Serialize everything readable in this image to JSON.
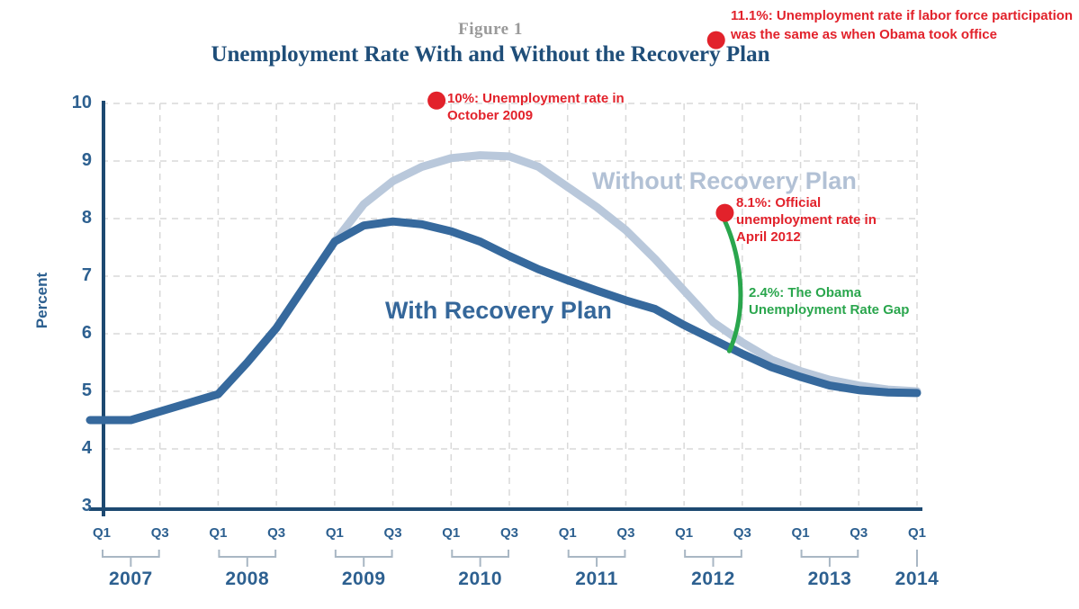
{
  "figure_label": "Figure 1",
  "title": "Unemployment Rate With and Without the Recovery Plan",
  "y_axis": {
    "label": "Percent",
    "ticks": [
      10,
      9,
      8,
      7,
      6,
      5,
      4,
      3
    ]
  },
  "x_axis": {
    "quarter_labels": [
      "Q1",
      "Q3"
    ],
    "years": [
      "2007",
      "2008",
      "2009",
      "2010",
      "2011",
      "2012",
      "2013",
      "2014"
    ]
  },
  "series_labels": {
    "with_plan": "With Recovery Plan",
    "without_plan": "Without Recovery Plan"
  },
  "annotations": {
    "participation": {
      "line1": "11.1%: Unemployment rate if labor force participation",
      "line2": "was the same as when Obama took office"
    },
    "oct2009": {
      "line1": "10%: Unemployment rate in",
      "line2": "October 2009"
    },
    "apr2012": {
      "line1": "8.1%: Official",
      "line2": "unemployment rate in",
      "line3": "April 2012"
    },
    "gap": {
      "line1": "2.4%: The Obama",
      "line2": "Unemployment Rate Gap"
    }
  },
  "colors": {
    "axis": "#1d4971",
    "tick_text": "#2d6090",
    "grid": "#d9d9d9",
    "with_line": "#36699d",
    "without_line": "#b9c8db",
    "bracket": "#a9b7c4",
    "red": "#e2222b",
    "green": "#2aa64d",
    "title": "#1f4e79",
    "figure_label": "#9a9a9a"
  },
  "chart_data": {
    "type": "line",
    "x_start": "2007-Q1",
    "x_end": "2014-Q1",
    "x_step": "quarter",
    "ylim": [
      3,
      10
    ],
    "ylabel": "Percent",
    "grid": "dashed",
    "series": [
      {
        "name": "With Recovery Plan",
        "start_index": 0,
        "values": [
          4.5,
          4.5,
          4.65,
          4.8,
          4.95,
          5.5,
          6.1,
          6.85,
          7.6,
          7.88,
          7.95,
          7.9,
          7.78,
          7.6,
          7.35,
          7.12,
          6.93,
          6.75,
          6.58,
          6.43,
          6.15,
          5.9,
          5.65,
          5.42,
          5.25,
          5.1,
          5.02,
          4.98,
          4.97
        ]
      },
      {
        "name": "Without Recovery Plan",
        "start_index": 8,
        "values": [
          7.6,
          8.25,
          8.65,
          8.9,
          9.05,
          9.1,
          9.08,
          8.9,
          8.55,
          8.2,
          7.8,
          7.3,
          6.75,
          6.2,
          5.85,
          5.55,
          5.35,
          5.2,
          5.1,
          5.03,
          5.0
        ]
      }
    ],
    "dots": [
      {
        "id": "dot-11-1",
        "label": "11.1%",
        "quarter": 21.1,
        "value": 11.1
      },
      {
        "id": "dot-10",
        "label": "10%",
        "quarter": 11.5,
        "value": 10.05
      },
      {
        "id": "dot-8-1",
        "label": "8.1%",
        "quarter": 21.4,
        "value": 8.1
      }
    ],
    "gap_connector": {
      "from_value": 8.1,
      "to_value": 5.7,
      "gap": 2.4
    }
  }
}
